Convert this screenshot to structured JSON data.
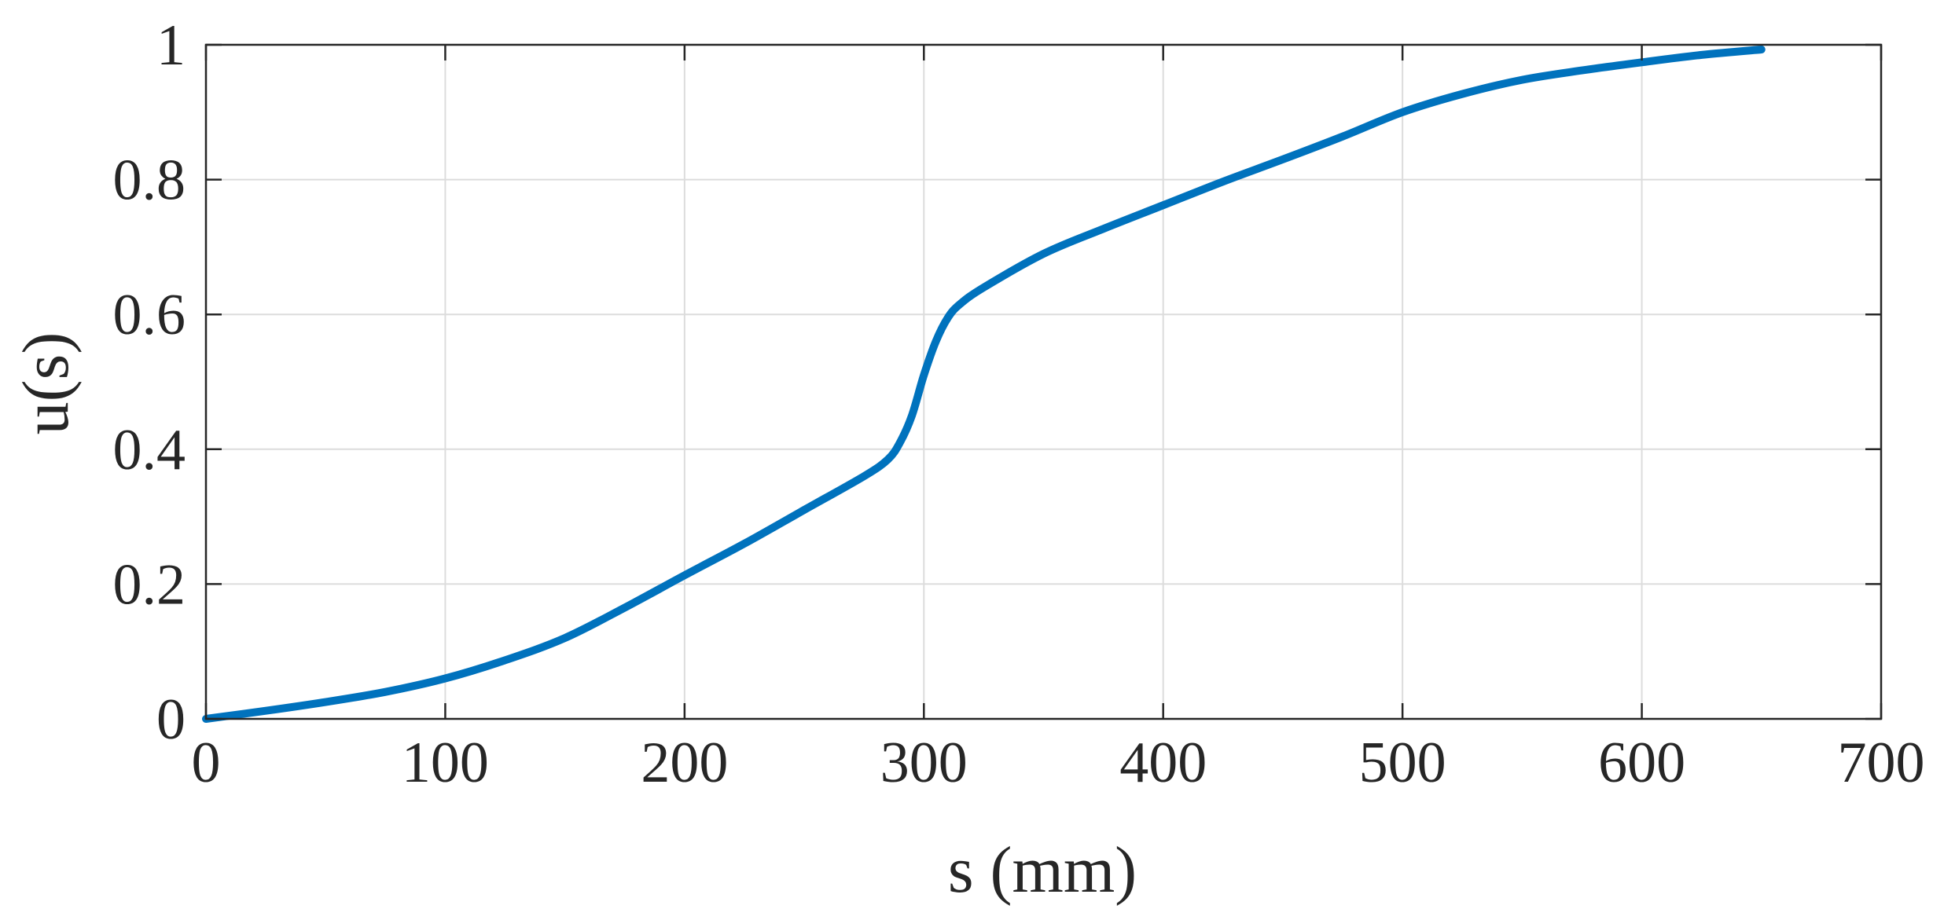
{
  "chart_data": {
    "type": "line",
    "title": "",
    "xlabel": "s (mm)",
    "ylabel": "u(s)",
    "xlim": [
      0,
      700
    ],
    "ylim": [
      0,
      1
    ],
    "xticks": [
      0,
      100,
      200,
      300,
      400,
      500,
      600,
      700
    ],
    "yticks": [
      0,
      0.2,
      0.4,
      0.6,
      0.8,
      1
    ],
    "xtick_labels": [
      "0",
      "100",
      "200",
      "300",
      "400",
      "500",
      "600",
      "700"
    ],
    "ytick_labels": [
      "0",
      "0.2",
      "0.4",
      "0.6",
      "0.8",
      "1"
    ],
    "grid": true,
    "colors": {
      "series": "#0072BD",
      "axis": "#262626",
      "grid": "#dcdcdc"
    },
    "series": [
      {
        "x": [
          0,
          25,
          50,
          75,
          100,
          125,
          150,
          175,
          200,
          225,
          250,
          275,
          285,
          290,
          295,
          300,
          305,
          310,
          315,
          325,
          350,
          375,
          400,
          425,
          450,
          475,
          500,
          525,
          550,
          575,
          600,
          625,
          650
        ],
        "y": [
          0,
          0.012,
          0.025,
          0.04,
          0.06,
          0.087,
          0.12,
          0.165,
          0.213,
          0.26,
          0.31,
          0.36,
          0.385,
          0.41,
          0.45,
          0.51,
          0.56,
          0.595,
          0.615,
          0.64,
          0.69,
          0.727,
          0.762,
          0.797,
          0.83,
          0.864,
          0.9,
          0.927,
          0.948,
          0.962,
          0.974,
          0.985,
          0.993
        ]
      }
    ]
  }
}
